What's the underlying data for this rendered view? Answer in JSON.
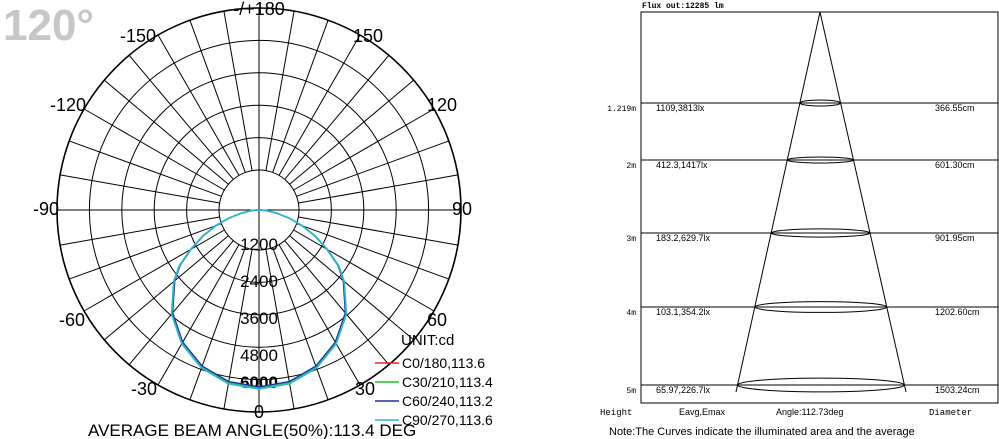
{
  "chart_data": [
    {
      "type": "polar",
      "badge": "120°",
      "unit_label": "UNIT:cd",
      "footer": "AVERAGE BEAM ANGLE(50%):113.4 DEG",
      "angle_labels": {
        "top": "-/+180",
        "upper_left": "-150",
        "upper_right": "150",
        "mid_upper_left": "-120",
        "mid_upper_right": "120",
        "left": "-90",
        "right": "90",
        "lower_left": "-60",
        "lower_right": "60",
        "bottom_left": "-30",
        "bottom_right": "30",
        "bottom": "0"
      },
      "radial_ticks": [
        "1200",
        "2400",
        "3600",
        "4800",
        "6000"
      ],
      "r_max": 6000,
      "series": [
        {
          "name": "C0/180,113.6",
          "color": "#e8262a"
        },
        {
          "name": "C30/210,113.4",
          "color": "#22c322"
        },
        {
          "name": "C60/240,113.2",
          "color": "#1f2fa8"
        },
        {
          "name": "C90/270,113.6",
          "color": "#2ab7cf"
        }
      ],
      "curve_profile": {
        "angles_deg": [
          0,
          10,
          20,
          30,
          40,
          50,
          55,
          60,
          65,
          70,
          75,
          80,
          85,
          90,
          95,
          100
        ],
        "candela": [
          5890,
          5800,
          5530,
          5080,
          4470,
          3660,
          3200,
          2600,
          2050,
          1520,
          1020,
          580,
          260,
          80,
          20,
          0
        ]
      }
    },
    {
      "type": "illuminance-cone",
      "title": "Flux out:12285 lm",
      "columns": {
        "height": "Height",
        "values": "Eavg,Emax",
        "angle": "Angle:112.73deg",
        "diameter": "Diameter"
      },
      "rows": [
        {
          "height": "1.219m",
          "values": "1109,3813lx",
          "diameter": "366.55cm"
        },
        {
          "height": "2m",
          "values": "412.3,1417lx",
          "diameter": "601.30cm"
        },
        {
          "height": "3m",
          "values": "183.2,629.7lx",
          "diameter": "901.95cm"
        },
        {
          "height": "4m",
          "values": "103.1,354.2lx",
          "diameter": "1202.60cm"
        },
        {
          "height": "5m",
          "values": "65.97,226.7lx",
          "diameter": "1503.24cm"
        }
      ],
      "note": "Note:The Curves indicate the illuminated area and the average"
    }
  ]
}
